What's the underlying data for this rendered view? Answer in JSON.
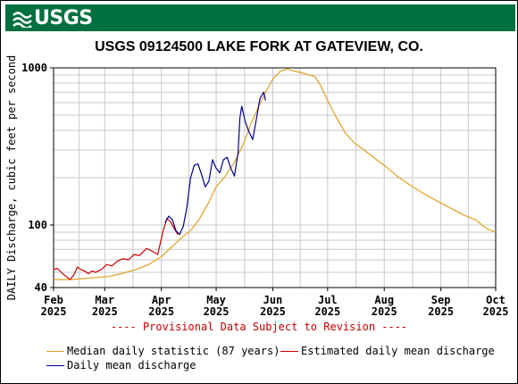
{
  "header": {
    "logo_text": "USGS",
    "brand_color": "#00703f"
  },
  "chart_data": {
    "type": "line",
    "title": "USGS 09124500 LAKE FORK AT GATEVIEW, CO.",
    "ylabel": "DAILY Discharge, cubic feet per second",
    "y_scale": "log",
    "ylim": [
      40,
      1000
    ],
    "y_tick_labels": [
      "1000",
      "100",
      "40"
    ],
    "xlim": [
      "2025-02-01",
      "2025-10-01"
    ],
    "x_ticks": [
      {
        "date": "2025-02-01",
        "month": "Feb",
        "year": "2025"
      },
      {
        "date": "2025-03-01",
        "month": "Mar",
        "year": "2025"
      },
      {
        "date": "2025-04-01",
        "month": "Apr",
        "year": "2025"
      },
      {
        "date": "2025-05-01",
        "month": "May",
        "year": "2025"
      },
      {
        "date": "2025-06-01",
        "month": "Jun",
        "year": "2025"
      },
      {
        "date": "2025-07-01",
        "month": "Jul",
        "year": "2025"
      },
      {
        "date": "2025-08-01",
        "month": "Aug",
        "year": "2025"
      },
      {
        "date": "2025-09-01",
        "month": "Sep",
        "year": "2025"
      },
      {
        "date": "2025-10-01",
        "month": "Oct",
        "year": "2025"
      }
    ],
    "grid": true,
    "annotation": "---- Provisional Data Subject to Revision ----",
    "series": [
      {
        "name": "Median daily statistic (87 years)",
        "color": "#e0a020",
        "points": [
          [
            "2025-02-01",
            45
          ],
          [
            "2025-02-11",
            45
          ],
          [
            "2025-02-21",
            46
          ],
          [
            "2025-03-03",
            47
          ],
          [
            "2025-03-10",
            49
          ],
          [
            "2025-03-18",
            52
          ],
          [
            "2025-03-25",
            56
          ],
          [
            "2025-04-01",
            63
          ],
          [
            "2025-04-07",
            73
          ],
          [
            "2025-04-12",
            83
          ],
          [
            "2025-04-17",
            92
          ],
          [
            "2025-04-22",
            110
          ],
          [
            "2025-04-27",
            140
          ],
          [
            "2025-05-01",
            175
          ],
          [
            "2025-05-06",
            205
          ],
          [
            "2025-05-11",
            250
          ],
          [
            "2025-05-16",
            330
          ],
          [
            "2025-05-20",
            440
          ],
          [
            "2025-05-24",
            560
          ],
          [
            "2025-05-28",
            700
          ],
          [
            "2025-06-01",
            850
          ],
          [
            "2025-06-05",
            950
          ],
          [
            "2025-06-09",
            985
          ],
          [
            "2025-06-13",
            950
          ],
          [
            "2025-06-17",
            930
          ],
          [
            "2025-06-21",
            900
          ],
          [
            "2025-06-24",
            880
          ],
          [
            "2025-06-27",
            780
          ],
          [
            "2025-07-01",
            620
          ],
          [
            "2025-07-06",
            480
          ],
          [
            "2025-07-11",
            380
          ],
          [
            "2025-07-16",
            330
          ],
          [
            "2025-07-21",
            300
          ],
          [
            "2025-07-26",
            270
          ],
          [
            "2025-08-01",
            240
          ],
          [
            "2025-08-08",
            205
          ],
          [
            "2025-08-15",
            180
          ],
          [
            "2025-08-22",
            160
          ],
          [
            "2025-08-31",
            140
          ],
          [
            "2025-09-08",
            125
          ],
          [
            "2025-09-14",
            115
          ],
          [
            "2025-09-20",
            108
          ],
          [
            "2025-09-26",
            95
          ],
          [
            "2025-10-01",
            90
          ]
        ]
      },
      {
        "name": "Estimated daily mean discharge",
        "color": "#cc0000",
        "points": [
          [
            "2025-02-01",
            52
          ],
          [
            "2025-02-03",
            53
          ],
          [
            "2025-02-06",
            49
          ],
          [
            "2025-02-08",
            47
          ],
          [
            "2025-02-10",
            45
          ],
          [
            "2025-02-12",
            48
          ],
          [
            "2025-02-14",
            54
          ],
          [
            "2025-02-16",
            52
          ],
          [
            "2025-02-18",
            51
          ],
          [
            "2025-02-20",
            49
          ],
          [
            "2025-02-22",
            51
          ],
          [
            "2025-02-24",
            50
          ],
          [
            "2025-02-27",
            52
          ],
          [
            "2025-03-02",
            56
          ],
          [
            "2025-03-05",
            55
          ],
          [
            "2025-03-08",
            59
          ],
          [
            "2025-03-11",
            61
          ],
          [
            "2025-03-14",
            60
          ],
          [
            "2025-03-17",
            65
          ],
          [
            "2025-03-20",
            64
          ],
          [
            "2025-03-24",
            71
          ],
          [
            "2025-03-27",
            68
          ],
          [
            "2025-03-30",
            65
          ],
          [
            "2025-04-02",
            92
          ],
          [
            "2025-04-04",
            110
          ],
          [
            "2025-04-06",
            105
          ],
          [
            "2025-04-08",
            95
          ],
          [
            "2025-04-10",
            87
          ]
        ]
      },
      {
        "name": "Daily mean discharge",
        "color": "#00008b",
        "points": [
          [
            "2025-04-03",
            103
          ],
          [
            "2025-04-05",
            114
          ],
          [
            "2025-04-07",
            108
          ],
          [
            "2025-04-09",
            92
          ],
          [
            "2025-04-11",
            87
          ],
          [
            "2025-04-13",
            98
          ],
          [
            "2025-04-15",
            130
          ],
          [
            "2025-04-17",
            200
          ],
          [
            "2025-04-19",
            240
          ],
          [
            "2025-04-21",
            245
          ],
          [
            "2025-04-23",
            210
          ],
          [
            "2025-04-25",
            175
          ],
          [
            "2025-04-27",
            190
          ],
          [
            "2025-04-29",
            260
          ],
          [
            "2025-05-01",
            230
          ],
          [
            "2025-05-03",
            215
          ],
          [
            "2025-05-05",
            260
          ],
          [
            "2025-05-07",
            270
          ],
          [
            "2025-05-09",
            230
          ],
          [
            "2025-05-11",
            205
          ],
          [
            "2025-05-13",
            290
          ],
          [
            "2025-05-14",
            480
          ],
          [
            "2025-05-15",
            570
          ],
          [
            "2025-05-17",
            450
          ],
          [
            "2025-05-19",
            390
          ],
          [
            "2025-05-21",
            350
          ],
          [
            "2025-05-23",
            470
          ],
          [
            "2025-05-25",
            640
          ],
          [
            "2025-05-27",
            700
          ],
          [
            "2025-05-28",
            620
          ]
        ]
      }
    ]
  }
}
